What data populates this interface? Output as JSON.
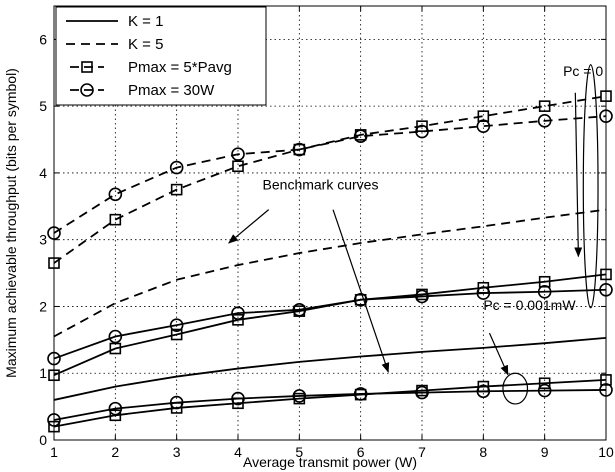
{
  "chart_data": {
    "type": "line",
    "title": "",
    "xlabel": "Average transmit power (W)",
    "ylabel": "Maximum achievable throughput (bits per symbol)",
    "xlim": [
      1,
      10
    ],
    "ylim": [
      0,
      6.5
    ],
    "xticks": [
      1,
      2,
      3,
      4,
      5,
      6,
      7,
      8,
      9,
      10
    ],
    "yticks": [
      0,
      1,
      2,
      3,
      4,
      5,
      6
    ],
    "grid": true,
    "legend": {
      "placement": "top-left",
      "entries": [
        {
          "label": "K = 1",
          "style": "solid"
        },
        {
          "label": "K = 5",
          "style": "dashed"
        },
        {
          "label": "Pmax = 5*Pavg",
          "style": "square-marker"
        },
        {
          "label": "Pmax = 30W",
          "style": "circle-marker"
        }
      ]
    },
    "series": [
      {
        "group": "benchmark",
        "style": "dashed",
        "x": [
          1,
          2,
          3,
          4,
          5,
          6,
          7,
          8,
          9,
          10
        ],
        "y": [
          1.55,
          2.05,
          2.4,
          2.62,
          2.8,
          2.95,
          3.08,
          3.2,
          3.33,
          3.45
        ]
      },
      {
        "group": "benchmark",
        "style": "solid",
        "x": [
          1,
          2,
          3,
          4,
          5,
          6,
          7,
          8,
          9,
          10
        ],
        "y": [
          0.6,
          0.8,
          0.95,
          1.07,
          1.17,
          1.25,
          1.32,
          1.38,
          1.45,
          1.53
        ]
      },
      {
        "group": "K=5 Pc=0",
        "style": "dashed",
        "marker": "square",
        "x": [
          1,
          2,
          3,
          4,
          5,
          6,
          7,
          8,
          9,
          10
        ],
        "y": [
          2.65,
          3.3,
          3.75,
          4.1,
          4.35,
          4.57,
          4.7,
          4.85,
          5.0,
          5.15
        ]
      },
      {
        "group": "K=5 Pc=0",
        "style": "dashed",
        "marker": "circle",
        "x": [
          1,
          2,
          3,
          4,
          5,
          6,
          7,
          8,
          9,
          10
        ],
        "y": [
          3.1,
          3.68,
          4.08,
          4.28,
          4.35,
          4.55,
          4.62,
          4.7,
          4.78,
          4.85
        ]
      },
      {
        "group": "K=1 Pc=0",
        "style": "solid",
        "marker": "square",
        "x": [
          1,
          2,
          3,
          4,
          5,
          6,
          7,
          8,
          9,
          10
        ],
        "y": [
          0.97,
          1.37,
          1.58,
          1.8,
          1.93,
          2.1,
          2.18,
          2.28,
          2.37,
          2.48
        ]
      },
      {
        "group": "K=1 Pc=0",
        "style": "solid",
        "marker": "circle",
        "x": [
          1,
          2,
          3,
          4,
          5,
          6,
          7,
          8,
          9,
          10
        ],
        "y": [
          1.22,
          1.55,
          1.72,
          1.9,
          1.95,
          2.1,
          2.15,
          2.2,
          2.22,
          2.25
        ]
      },
      {
        "group": "K=1 Pc=0.001mW",
        "style": "solid",
        "marker": "square",
        "x": [
          1,
          2,
          3,
          4,
          5,
          6,
          7,
          8,
          9,
          10
        ],
        "y": [
          0.2,
          0.37,
          0.48,
          0.55,
          0.62,
          0.68,
          0.74,
          0.8,
          0.85,
          0.9
        ]
      },
      {
        "group": "K=1 Pc=0.001mW",
        "style": "solid",
        "marker": "circle",
        "x": [
          1,
          2,
          3,
          4,
          5,
          6,
          7,
          8,
          9,
          10
        ],
        "y": [
          0.3,
          0.47,
          0.56,
          0.62,
          0.66,
          0.69,
          0.71,
          0.73,
          0.74,
          0.75
        ]
      }
    ],
    "annotations": [
      {
        "text": "Pc = 0",
        "text_at": [
          9.3,
          5.45
        ],
        "ellipse": {
          "cx": 9.75,
          "cy": 3.8,
          "rx": 0.12,
          "ry": 1.82
        },
        "arrow_from": [
          9.5,
          5.2
        ],
        "arrow_to": [
          9.55,
          2.75
        ]
      },
      {
        "text": "Benchmark curves",
        "text_at": [
          4.4,
          3.75
        ],
        "arrows": [
          [
            [
              4.5,
              3.45
            ],
            [
              3.85,
              2.95
            ]
          ],
          [
            [
              5.55,
              3.45
            ],
            [
              6.45,
              1.02
            ]
          ]
        ]
      },
      {
        "text": "Pc = 0.001mW",
        "text_at": [
          8.0,
          1.95
        ],
        "ellipse": {
          "cx": 8.52,
          "cy": 0.77,
          "rx": 0.2,
          "ry": 0.23
        },
        "arrow_from": [
          8.1,
          1.6
        ],
        "arrow_to": [
          8.4,
          0.98
        ]
      }
    ]
  }
}
